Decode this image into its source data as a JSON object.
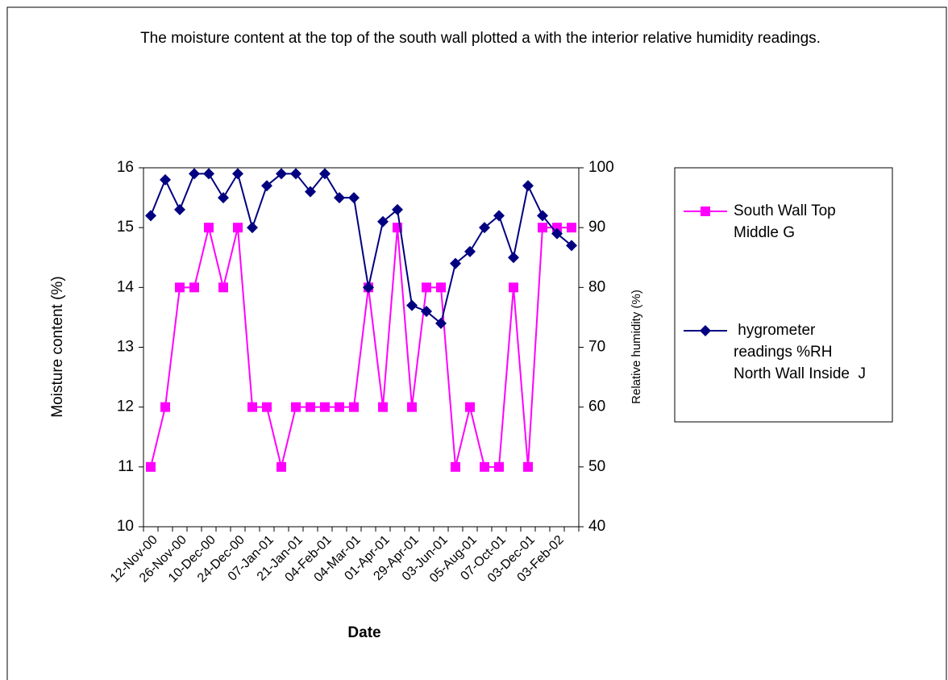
{
  "chart_data": {
    "type": "line",
    "title": "The moisture content at the top of the south wall plotted a with the interior relative humidity readings.",
    "x_label": "Date",
    "y_label": "Moisture content (%)",
    "y2_label": "Relative humidity (%)",
    "categories": [
      "12-Nov-00",
      null,
      "26-Nov-00",
      null,
      "10-Dec-00",
      null,
      "24-Dec-00",
      null,
      "07-Jan-01",
      null,
      "21-Jan-01",
      null,
      "04-Feb-01",
      null,
      "04-Mar-01",
      null,
      "01-Apr-01",
      null,
      "29-Apr-01",
      null,
      "03-Jun-01",
      null,
      "05-Aug-01",
      null,
      "07-Oct-01",
      null,
      "03-Dec-01",
      null,
      "03-Feb-02",
      null
    ],
    "series": [
      {
        "name": "South Wall Top Middle G",
        "color": "#ff00ff",
        "marker": "square",
        "values": [
          11,
          12,
          14,
          14,
          15,
          14,
          15,
          12,
          12,
          11,
          12,
          12,
          12,
          12,
          12,
          14,
          12,
          15,
          12,
          14,
          14,
          11,
          12,
          11,
          11,
          14,
          11,
          15,
          15,
          15
        ]
      },
      {
        "name": " hygrometer readings %RH North Wall Inside  J",
        "color": "#000080",
        "marker": "diamond",
        "axis": "y2",
        "values": [
          92,
          98,
          93,
          99,
          99,
          95,
          99,
          90,
          97,
          99,
          99,
          96,
          99,
          95,
          95,
          80,
          91,
          93,
          77,
          76,
          74,
          84,
          86,
          90,
          92,
          85,
          97,
          92,
          89,
          87
        ]
      }
    ],
    "ylim": [
      10,
      16
    ],
    "yticks": [
      10,
      11,
      12,
      13,
      14,
      15,
      16
    ],
    "y2lim": [
      40,
      100
    ],
    "y2ticks": [
      40,
      50,
      60,
      70,
      80,
      90,
      100
    ],
    "legend": "right"
  }
}
